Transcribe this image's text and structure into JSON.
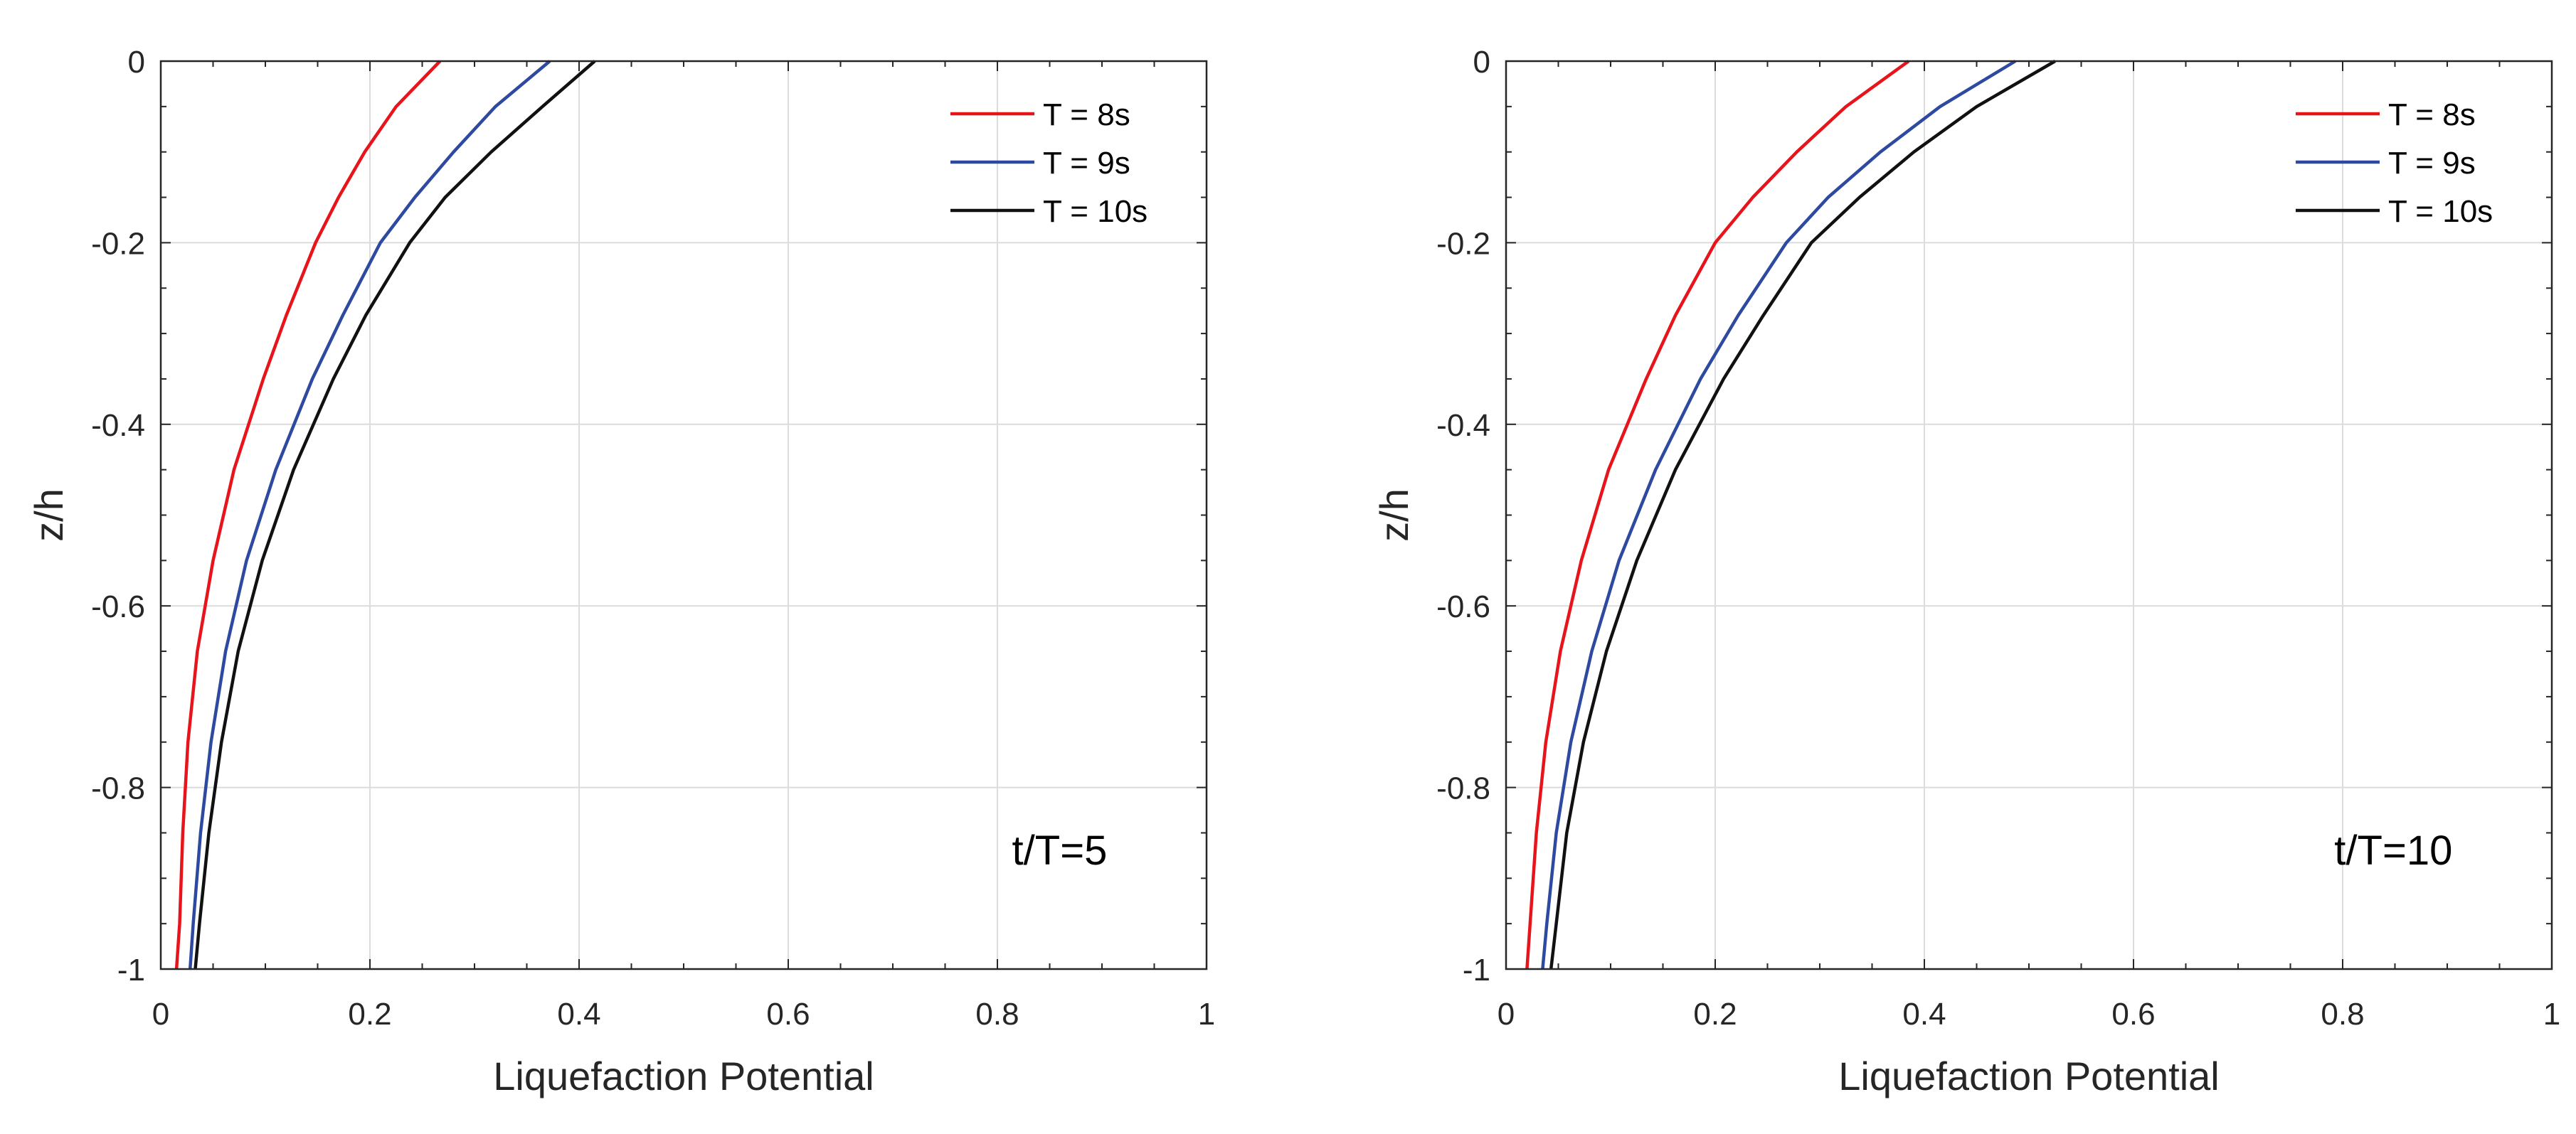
{
  "chart_data": [
    {
      "type": "line",
      "title": "",
      "xlabel": "Liquefaction Potential",
      "ylabel": "z/h",
      "xlim": [
        0,
        1
      ],
      "ylim": [
        -1,
        0
      ],
      "xticks": [
        "0",
        "0.2",
        "0.4",
        "0.6",
        "0.8",
        "1"
      ],
      "yticks": [
        "0",
        "-0.2",
        "-0.4",
        "-0.6",
        "-0.8",
        "-1"
      ],
      "grid": true,
      "legend_position": "top-right",
      "annotation": "t/T=5",
      "series": [
        {
          "name": "T = 8s",
          "color": "#e8141b",
          "x": [
            0.267,
            0.225,
            0.195,
            0.17,
            0.148,
            0.12,
            0.098,
            0.07,
            0.05,
            0.035,
            0.026,
            0.021,
            0.018,
            0.015
          ],
          "y": [
            0,
            -0.05,
            -0.1,
            -0.15,
            -0.2,
            -0.28,
            -0.35,
            -0.45,
            -0.55,
            -0.65,
            -0.75,
            -0.85,
            -0.95,
            -1.0
          ]
        },
        {
          "name": "T = 9s",
          "color": "#2e4aa0",
          "x": [
            0.372,
            0.32,
            0.28,
            0.243,
            0.21,
            0.174,
            0.145,
            0.11,
            0.082,
            0.062,
            0.048,
            0.038,
            0.031,
            0.028
          ],
          "y": [
            0,
            -0.05,
            -0.1,
            -0.15,
            -0.2,
            -0.28,
            -0.35,
            -0.45,
            -0.55,
            -0.65,
            -0.75,
            -0.85,
            -0.95,
            -1.0
          ]
        },
        {
          "name": "T = 10s",
          "color": "#111111",
          "x": [
            0.415,
            0.365,
            0.316,
            0.272,
            0.238,
            0.196,
            0.165,
            0.127,
            0.097,
            0.074,
            0.058,
            0.046,
            0.037,
            0.033
          ],
          "y": [
            0,
            -0.05,
            -0.1,
            -0.15,
            -0.2,
            -0.28,
            -0.35,
            -0.45,
            -0.55,
            -0.65,
            -0.75,
            -0.85,
            -0.95,
            -1.0
          ]
        }
      ]
    },
    {
      "type": "line",
      "title": "",
      "xlabel": "Liquefaction Potential",
      "ylabel": "z/h",
      "xlim": [
        0,
        1
      ],
      "ylim": [
        -1,
        0
      ],
      "xticks": [
        "0",
        "0.2",
        "0.4",
        "0.6",
        "0.8",
        "1"
      ],
      "yticks": [
        "0",
        "-0.2",
        "-0.4",
        "-0.6",
        "-0.8",
        "-1"
      ],
      "grid": true,
      "legend_position": "top-right",
      "annotation": "t/T=10",
      "series": [
        {
          "name": "T = 8s",
          "color": "#e8141b",
          "x": [
            0.385,
            0.325,
            0.278,
            0.236,
            0.2,
            0.162,
            0.134,
            0.098,
            0.072,
            0.052,
            0.038,
            0.029,
            0.023,
            0.02
          ],
          "y": [
            0,
            -0.05,
            -0.1,
            -0.15,
            -0.2,
            -0.28,
            -0.35,
            -0.45,
            -0.55,
            -0.65,
            -0.75,
            -0.85,
            -0.95,
            -1.0
          ]
        },
        {
          "name": "T = 9s",
          "color": "#2e4aa0",
          "x": [
            0.487,
            0.415,
            0.358,
            0.308,
            0.268,
            0.222,
            0.186,
            0.143,
            0.108,
            0.082,
            0.062,
            0.048,
            0.039,
            0.035
          ],
          "y": [
            0,
            -0.05,
            -0.1,
            -0.15,
            -0.2,
            -0.28,
            -0.35,
            -0.45,
            -0.55,
            -0.65,
            -0.75,
            -0.85,
            -0.95,
            -1.0
          ]
        },
        {
          "name": "T = 10s",
          "color": "#111111",
          "x": [
            0.525,
            0.45,
            0.39,
            0.338,
            0.292,
            0.246,
            0.208,
            0.162,
            0.125,
            0.096,
            0.074,
            0.058,
            0.048,
            0.043
          ],
          "y": [
            0,
            -0.05,
            -0.1,
            -0.15,
            -0.2,
            -0.28,
            -0.35,
            -0.45,
            -0.55,
            -0.65,
            -0.75,
            -0.85,
            -0.95,
            -1.0
          ]
        }
      ]
    }
  ]
}
